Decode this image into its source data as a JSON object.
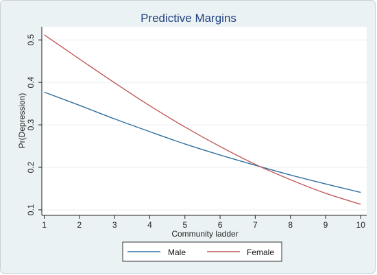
{
  "chart_data": {
    "type": "line",
    "title": "Predictive Margins",
    "xlabel": "Community ladder",
    "ylabel": "Pr(Depression)",
    "x": [
      1,
      2,
      3,
      4,
      5,
      6,
      7,
      8,
      9,
      10
    ],
    "xlim": [
      1,
      10
    ],
    "ylim": [
      0.1,
      0.5
    ],
    "xticks": [
      "1",
      "2",
      "3",
      "4",
      "5",
      "6",
      "7",
      "8",
      "9",
      "10"
    ],
    "yticks": [
      "0.1",
      "0.2",
      "0.3",
      "0.4",
      "0.5"
    ],
    "grid": true,
    "legend_position": "bottom",
    "series": [
      {
        "name": "Male",
        "color": "#2f6f9f",
        "values": [
          0.377,
          0.346,
          0.314,
          0.284,
          0.255,
          0.229,
          0.205,
          0.182,
          0.161,
          0.141
        ]
      },
      {
        "name": "Female",
        "color": "#c05a5a",
        "values": [
          0.512,
          0.455,
          0.399,
          0.345,
          0.295,
          0.249,
          0.207,
          0.171,
          0.139,
          0.113
        ]
      }
    ]
  }
}
